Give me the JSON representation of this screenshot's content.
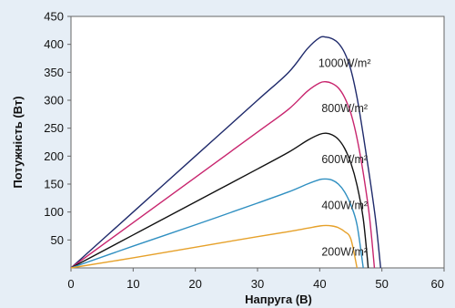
{
  "chart_data": {
    "type": "line",
    "xlabel": "Напруга (В)",
    "ylabel": "Потужність (Вт)",
    "xlim": [
      0,
      60
    ],
    "ylim": [
      0,
      450
    ],
    "x_ticks": [
      "0",
      "10",
      "20",
      "30",
      "40",
      "50",
      "60"
    ],
    "y_ticks": [
      "50",
      "100",
      "150",
      "200",
      "250",
      "300",
      "350",
      "400",
      "450"
    ],
    "grid": false,
    "series": [
      {
        "name": "1000W/m²",
        "color": "#1f2a6b",
        "points": [
          [
            0,
            0
          ],
          [
            10,
            100
          ],
          [
            20,
            200
          ],
          [
            30,
            300
          ],
          [
            35,
            350
          ],
          [
            38,
            392
          ],
          [
            40,
            412
          ],
          [
            41,
            413
          ],
          [
            42,
            410
          ],
          [
            43,
            402
          ],
          [
            44,
            385
          ],
          [
            45,
            355
          ],
          [
            46,
            305
          ],
          [
            47,
            238
          ],
          [
            48,
            165
          ],
          [
            49,
            85
          ],
          [
            49.8,
            0
          ]
        ]
      },
      {
        "name": "800W/m²",
        "color": "#c8256e",
        "points": [
          [
            0,
            0
          ],
          [
            10,
            81
          ],
          [
            20,
            162
          ],
          [
            30,
            243
          ],
          [
            35,
            284
          ],
          [
            38,
            316
          ],
          [
            40,
            331
          ],
          [
            41,
            333
          ],
          [
            42,
            330
          ],
          [
            43,
            322
          ],
          [
            44,
            305
          ],
          [
            45,
            277
          ],
          [
            46,
            232
          ],
          [
            47,
            170
          ],
          [
            48,
            92
          ],
          [
            48.8,
            0
          ]
        ]
      },
      {
        "name": "600W/m²",
        "color": "#111111",
        "points": [
          [
            0,
            0
          ],
          [
            10,
            59
          ],
          [
            20,
            118
          ],
          [
            30,
            177
          ],
          [
            35,
            207
          ],
          [
            38,
            228
          ],
          [
            40,
            239
          ],
          [
            41,
            241
          ],
          [
            42,
            238
          ],
          [
            43,
            230
          ],
          [
            44,
            214
          ],
          [
            45,
            188
          ],
          [
            46,
            148
          ],
          [
            47,
            88
          ],
          [
            47.8,
            0
          ]
        ]
      },
      {
        "name": "400W/m²",
        "color": "#2f8fc1",
        "points": [
          [
            0,
            0
          ],
          [
            10,
            39
          ],
          [
            20,
            77
          ],
          [
            30,
            116
          ],
          [
            35,
            136
          ],
          [
            38,
            150
          ],
          [
            40,
            158
          ],
          [
            41,
            159
          ],
          [
            42,
            157
          ],
          [
            43,
            150
          ],
          [
            44,
            136
          ],
          [
            45,
            113
          ],
          [
            46,
            77
          ],
          [
            47,
            0
          ]
        ]
      },
      {
        "name": "200W/m²",
        "color": "#e6a12a",
        "points": [
          [
            0,
            0
          ],
          [
            10,
            18
          ],
          [
            20,
            37
          ],
          [
            30,
            56
          ],
          [
            35,
            65
          ],
          [
            38,
            71
          ],
          [
            40,
            75
          ],
          [
            41,
            76
          ],
          [
            42,
            75
          ],
          [
            43,
            72
          ],
          [
            44,
            65
          ],
          [
            45,
            52
          ],
          [
            46,
            0
          ]
        ]
      }
    ]
  }
}
